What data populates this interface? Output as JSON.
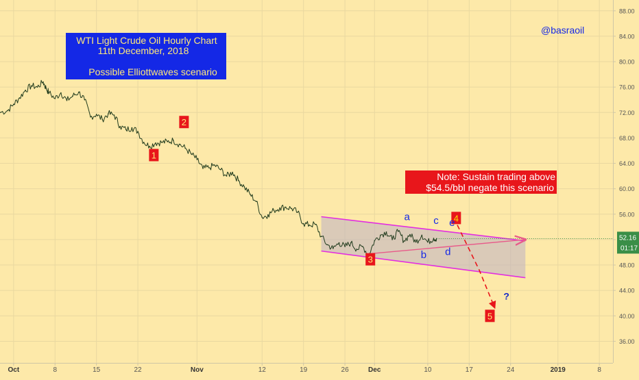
{
  "chart_data": {
    "type": "line",
    "title_box": {
      "lines": [
        "WTI Light Crude Oil Hourly Chart",
        "11th December, 2018",
        "",
        "Possible Elliottwaves scenario"
      ]
    },
    "watermark": "@basraoil",
    "note": {
      "lines": [
        "Note: Sustain trading above",
        "$54.5/bbl negate this scenario"
      ]
    },
    "y_axis": {
      "ticks": [
        36,
        40,
        44,
        48,
        52,
        56,
        60,
        64,
        68,
        72,
        76,
        80,
        84,
        88
      ],
      "tick_labels": [
        "36.00",
        "40.00",
        "44.00",
        "48.00",
        "52.00",
        "56.00",
        "60.00",
        "64.00",
        "68.00",
        "72.00",
        "76.00",
        "80.00",
        "84.00",
        "88.00"
      ],
      "ylim": [
        32.6,
        89.7
      ]
    },
    "x_axis": {
      "tick_labels": [
        "Oct",
        "8",
        "15",
        "22",
        "Nov",
        "12",
        "19",
        "26",
        "Dec",
        "10",
        "17",
        "24",
        "2019",
        "8"
      ],
      "tick_days": [
        1,
        8,
        15,
        22,
        32,
        43,
        50,
        57,
        62,
        71,
        78,
        85,
        93,
        100
      ],
      "bold_labels": [
        "Oct",
        "Nov",
        "Dec",
        "2019"
      ],
      "xlim_days": [
        -1.3,
        102.3
      ],
      "day_note": "days counted from 30 Sep 2018"
    },
    "price_tag": {
      "value": 52.16,
      "label": "52.16",
      "timer": "01:17"
    },
    "series": [
      {
        "points": [
          [
            -1.3,
            72.0
          ],
          [
            0,
            72.3
          ],
          [
            1,
            73.3
          ],
          [
            2,
            74.3
          ],
          [
            3,
            75.5
          ],
          [
            4,
            76.2
          ],
          [
            5,
            76.0
          ],
          [
            6,
            76.8
          ],
          [
            6.5,
            75.8
          ],
          [
            7,
            75.1
          ],
          [
            8,
            74.2
          ],
          [
            9,
            75.1
          ],
          [
            10,
            73.9
          ],
          [
            11,
            74.6
          ],
          [
            12,
            75.2
          ],
          [
            13,
            74.0
          ],
          [
            14,
            71.3
          ],
          [
            15,
            71.7
          ],
          [
            16,
            70.9
          ],
          [
            17,
            71.8
          ],
          [
            18,
            71.6
          ],
          [
            19,
            69.8
          ],
          [
            20,
            69.3
          ],
          [
            21,
            69.6
          ],
          [
            22,
            69.0
          ],
          [
            23,
            67.3
          ],
          [
            24,
            66.7
          ],
          [
            25,
            67.2
          ],
          [
            26,
            67.3
          ],
          [
            27,
            67.4
          ],
          [
            28,
            67.6
          ],
          [
            29,
            67.0
          ],
          [
            30,
            66.4
          ],
          [
            31,
            65.5
          ],
          [
            32,
            64.6
          ],
          [
            33,
            63.2
          ],
          [
            34,
            63.3
          ],
          [
            35,
            63.7
          ],
          [
            36,
            63.0
          ],
          [
            37,
            62.0
          ],
          [
            38,
            62.6
          ],
          [
            39,
            61.3
          ],
          [
            40,
            60.3
          ],
          [
            41,
            59.1
          ],
          [
            42,
            58.0
          ],
          [
            43,
            55.5
          ],
          [
            44,
            55.9
          ],
          [
            45,
            56.6
          ],
          [
            46,
            57.0
          ],
          [
            47,
            57.1
          ],
          [
            48,
            56.9
          ],
          [
            49,
            56.3
          ],
          [
            50,
            54.5
          ],
          [
            51,
            54.3
          ],
          [
            52,
            54.4
          ],
          [
            53,
            52.5
          ],
          [
            54,
            51.2
          ],
          [
            55,
            50.6
          ],
          [
            56,
            51.5
          ],
          [
            57,
            50.9
          ],
          [
            58,
            51.5
          ],
          [
            59,
            50.5
          ],
          [
            60,
            50.9
          ],
          [
            61,
            49.6
          ],
          [
            62,
            51.8
          ],
          [
            63,
            52.7
          ],
          [
            64,
            53.2
          ],
          [
            65,
            52.0
          ],
          [
            66,
            53.3
          ],
          [
            67,
            51.8
          ],
          [
            68,
            52.8
          ],
          [
            69,
            51.6
          ],
          [
            70,
            52.7
          ],
          [
            71,
            51.6
          ],
          [
            72,
            52.2
          ],
          [
            72.5,
            52.16
          ]
        ]
      }
    ],
    "channel": {
      "upper": [
        [
          53.0,
          55.6
        ],
        [
          87.5,
          51.8
        ]
      ],
      "lower": [
        [
          53.0,
          50.2
        ],
        [
          87.5,
          46.0
        ]
      ]
    },
    "wave_labels": [
      {
        "text": "1",
        "x": 24.7,
        "y": 65.3,
        "style": "box"
      },
      {
        "text": "2",
        "x": 29.8,
        "y": 70.5,
        "style": "box"
      },
      {
        "text": "3",
        "x": 61.3,
        "y": 48.9,
        "style": "box"
      },
      {
        "text": "4",
        "x": 75.8,
        "y": 55.4,
        "style": "box"
      },
      {
        "text": "5",
        "x": 81.5,
        "y": 40.0,
        "style": "box"
      },
      {
        "text": "a",
        "x": 67.5,
        "y": 55.6,
        "style": "plain"
      },
      {
        "text": "b",
        "x": 70.3,
        "y": 49.6,
        "style": "plain"
      },
      {
        "text": "c",
        "x": 72.4,
        "y": 55.0,
        "style": "plain"
      },
      {
        "text": "d",
        "x": 74.4,
        "y": 50.1,
        "style": "plain"
      },
      {
        "text": "e",
        "x": 75.1,
        "y": 54.7,
        "style": "plain"
      },
      {
        "text": "?",
        "x": 84.3,
        "y": 43.1,
        "style": "plain"
      }
    ],
    "projected_wave": [
      [
        76.0,
        54.3
      ],
      [
        79.7,
        47.2
      ],
      [
        82.3,
        41.3
      ]
    ],
    "wave_e_arrow": [
      [
        61.5,
        49.8
      ],
      [
        87.5,
        52.0
      ]
    ]
  }
}
